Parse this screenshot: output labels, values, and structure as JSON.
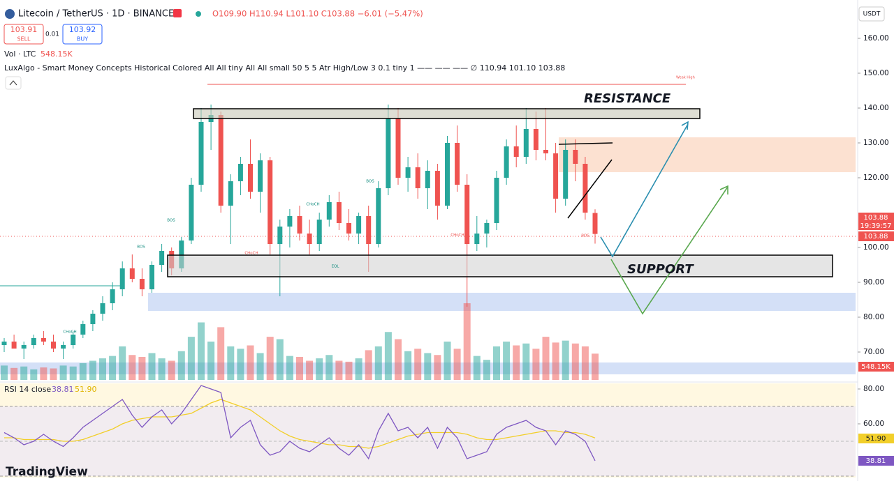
{
  "header": {
    "symbol": "Litecoin / TetherUS · 1D · BINANCE",
    "ohlc": "O109.90 H110.94 L101.10 C103.88 −6.01 (−5.47%)",
    "sell_price": "103.91",
    "sell": "SELL",
    "spread": "0.01",
    "buy_price": "103.92",
    "buy": "BUY",
    "currency": "USDT",
    "volume_label": "Vol · LTC",
    "volume_value": "548.15K",
    "indicator": "LuxAlgo - Smart Money Concepts Historical Colored All All tiny All All small 50 5 5 Atr High/Low 3 0.1 tiny 1 —— —— ——  ∅  110.94  101.10  103.88",
    "rsi_label": "RSI 14 close",
    "rsi_value": "38.81",
    "rsi_ma_value": "51.90",
    "brand": "TradingView"
  },
  "annotations": {
    "resistance": "RESISTANCE",
    "support": "SUPPORT",
    "weak_high": "Weak High",
    "structure_labels": [
      "BOS",
      "BOS",
      "CHoCH",
      "CHoCH",
      "CHoCH",
      "EQL",
      "BOS",
      "CHoCH",
      "BOS"
    ]
  },
  "price_tags": {
    "last": "103.88",
    "countdown": "19:39:57",
    "close": "103.88",
    "volume": "548.15K",
    "rsi_ma": "51.90",
    "rsi": "38.81"
  },
  "chart_data": {
    "type": "candlestick",
    "open": [
      72,
      73,
      71,
      72,
      74,
      73,
      71,
      72,
      75,
      78,
      81,
      84,
      88,
      94,
      91,
      88,
      95,
      99,
      94,
      102,
      118,
      136,
      138,
      112,
      119,
      124,
      116,
      125,
      101,
      106,
      109,
      104,
      101,
      108,
      113,
      107,
      104,
      109,
      101,
      117,
      137,
      120,
      123,
      117,
      122,
      112,
      130,
      118,
      101,
      104,
      107,
      120,
      129,
      126,
      134,
      128,
      127,
      114,
      128,
      124,
      109.9
    ],
    "high": [
      74,
      75,
      73,
      75,
      76,
      75,
      73,
      76,
      79,
      82,
      86,
      90,
      96,
      98,
      94,
      96,
      101,
      100,
      103,
      120,
      140,
      141,
      139,
      121,
      126,
      131,
      127,
      126,
      108,
      111,
      112,
      108,
      110,
      115,
      116,
      111,
      110,
      112,
      119,
      141,
      140,
      126,
      127,
      125,
      124,
      132,
      135,
      121,
      109,
      108,
      122,
      131,
      135,
      140,
      139,
      140,
      130,
      131,
      131,
      126,
      110.94
    ],
    "low": [
      70,
      71,
      68,
      71,
      72,
      70,
      68,
      71,
      74,
      76,
      79,
      82,
      86,
      90,
      86,
      87,
      93,
      92,
      93,
      101,
      116,
      128,
      110,
      101,
      115,
      114,
      110,
      98,
      86,
      100,
      102,
      98,
      99,
      106,
      105,
      102,
      101,
      93,
      100,
      115,
      118,
      116,
      114,
      111,
      108,
      111,
      116,
      83,
      99,
      100,
      105,
      118,
      123,
      124,
      125,
      125,
      110,
      112,
      119,
      108,
      101.1
    ],
    "close": [
      73,
      71,
      72,
      74,
      73,
      71,
      72,
      75,
      78,
      81,
      84,
      88,
      94,
      91,
      88,
      95,
      99,
      94,
      102,
      118,
      136,
      138,
      112,
      119,
      124,
      116,
      125,
      101,
      106,
      109,
      104,
      101,
      108,
      113,
      107,
      104,
      109,
      101,
      117,
      137,
      120,
      123,
      117,
      122,
      112,
      130,
      118,
      101,
      104,
      107,
      120,
      129,
      126,
      134,
      128,
      127,
      114,
      128,
      124,
      110,
      103.88
    ],
    "volume": [
      300,
      250,
      280,
      220,
      260,
      240,
      300,
      280,
      350,
      400,
      450,
      500,
      700,
      520,
      480,
      560,
      450,
      400,
      600,
      900,
      1200,
      800,
      1100,
      700,
      650,
      720,
      560,
      900,
      850,
      500,
      480,
      400,
      450,
      520,
      400,
      380,
      450,
      620,
      700,
      1000,
      850,
      600,
      650,
      560,
      520,
      800,
      650,
      1600,
      500,
      420,
      700,
      800,
      720,
      760,
      650,
      900,
      780,
      820,
      760,
      700,
      548.15
    ],
    "ylim": [
      62,
      170
    ],
    "yticks": [
      {
        "value": 160,
        "label": "160.00"
      },
      {
        "value": 150,
        "label": "150.00"
      },
      {
        "value": 140,
        "label": "140.00"
      },
      {
        "value": 130,
        "label": "130.00"
      },
      {
        "value": 120,
        "label": "120.00"
      },
      {
        "value": 100,
        "label": "100.00"
      },
      {
        "value": 90,
        "label": "90.00"
      },
      {
        "value": 80,
        "label": "80.00"
      },
      {
        "value": 70,
        "label": "70.00"
      }
    ],
    "up_color": "#26a69a",
    "down_color": "#ef5350",
    "rsi": {
      "values": [
        55,
        52,
        48,
        50,
        54,
        50,
        47,
        52,
        58,
        62,
        66,
        70,
        74,
        65,
        58,
        64,
        68,
        60,
        66,
        74,
        82,
        80,
        78,
        52,
        58,
        62,
        48,
        42,
        44,
        50,
        46,
        44,
        48,
        52,
        46,
        42,
        48,
        40,
        56,
        66,
        56,
        58,
        52,
        58,
        46,
        58,
        52,
        40,
        42,
        44,
        54,
        58,
        60,
        62,
        58,
        56,
        48,
        56,
        54,
        50,
        38.81
      ],
      "ma": [
        52,
        52,
        51,
        51,
        51,
        51,
        50,
        50,
        51,
        53,
        55,
        57,
        60,
        62,
        63,
        64,
        64,
        64,
        65,
        66,
        69,
        72,
        74,
        72,
        70,
        68,
        64,
        60,
        56,
        53,
        51,
        50,
        49,
        48,
        48,
        47,
        47,
        46,
        47,
        49,
        51,
        53,
        54,
        55,
        55,
        55,
        55,
        54,
        52,
        51,
        51,
        52,
        53,
        54,
        55,
        56,
        56,
        55,
        55,
        54,
        51.9
      ],
      "ylim": [
        29.2,
        83.2
      ],
      "yticks": [
        {
          "value": 80,
          "label": "80.00"
        },
        {
          "value": 60,
          "label": "60.00"
        }
      ],
      "color": "#7e57c2",
      "ma_color": "#f2cf2a"
    }
  }
}
